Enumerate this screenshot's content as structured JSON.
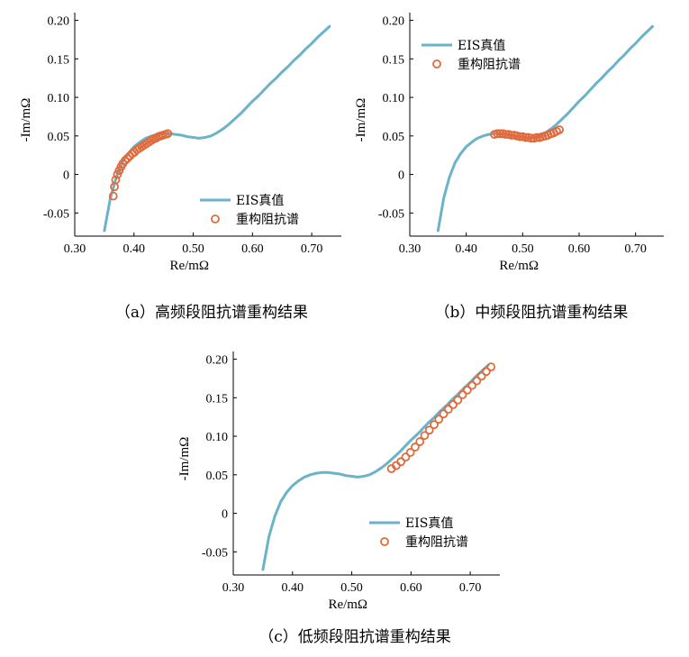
{
  "colors": {
    "truth": "#6ab3c9",
    "recon": "#e06a3b"
  },
  "chart_data": [
    {
      "id": "a",
      "type": "line",
      "caption": "（a）高频段阻抗谱重构结果",
      "xlabel": "Re/mΩ",
      "ylabel": "-Im/mΩ",
      "xlim": [
        0.3,
        0.75
      ],
      "ylim": [
        -0.08,
        0.21
      ],
      "xticks": [
        0.3,
        0.4,
        0.5,
        0.6,
        0.7
      ],
      "xtick_labels": [
        "0.30",
        "0.40",
        "0.50",
        "0.60",
        "0.70"
      ],
      "yticks": [
        -0.05,
        0,
        0.05,
        0.1,
        0.15,
        0.2
      ],
      "ytick_labels": [
        "-0.05",
        "0",
        "0.05",
        "0.10",
        "0.15",
        "0.20"
      ],
      "legend_position": "lower-right",
      "series": [
        {
          "name": "EIS真值",
          "kind": "line",
          "x": [
            0.35,
            0.36,
            0.37,
            0.38,
            0.39,
            0.4,
            0.41,
            0.42,
            0.43,
            0.44,
            0.45,
            0.46,
            0.47,
            0.48,
            0.49,
            0.5,
            0.51,
            0.52,
            0.53,
            0.54,
            0.55,
            0.56,
            0.57,
            0.58,
            0.59,
            0.6,
            0.61,
            0.62,
            0.63,
            0.64,
            0.65,
            0.66,
            0.67,
            0.68,
            0.69,
            0.7,
            0.71,
            0.72,
            0.73
          ],
          "y": [
            -0.073,
            -0.031,
            -0.004,
            0.015,
            0.027,
            0.036,
            0.042,
            0.047,
            0.05,
            0.052,
            0.053,
            0.053,
            0.052,
            0.051,
            0.049,
            0.048,
            0.047,
            0.048,
            0.05,
            0.054,
            0.059,
            0.065,
            0.072,
            0.079,
            0.087,
            0.095,
            0.102,
            0.11,
            0.118,
            0.125,
            0.133,
            0.14,
            0.148,
            0.155,
            0.163,
            0.17,
            0.178,
            0.185,
            0.192
          ]
        },
        {
          "name": "重构阻抗谱",
          "kind": "scatter",
          "x": [
            0.365,
            0.367,
            0.369,
            0.372,
            0.375,
            0.378,
            0.381,
            0.385,
            0.389,
            0.393,
            0.397,
            0.401,
            0.405,
            0.409,
            0.413,
            0.417,
            0.421,
            0.425,
            0.429,
            0.433,
            0.437,
            0.441,
            0.445,
            0.449,
            0.453,
            0.457
          ],
          "y": [
            -0.028,
            -0.016,
            -0.007,
            0.0,
            0.005,
            0.01,
            0.014,
            0.018,
            0.021,
            0.024,
            0.027,
            0.029,
            0.032,
            0.034,
            0.036,
            0.038,
            0.04,
            0.042,
            0.044,
            0.046,
            0.047,
            0.049,
            0.05,
            0.051,
            0.052,
            0.053
          ]
        }
      ]
    },
    {
      "id": "b",
      "type": "line",
      "caption": "（b）中频段阻抗谱重构结果",
      "xlabel": "Re/mΩ",
      "ylabel": "-Im/mΩ",
      "xlim": [
        0.3,
        0.75
      ],
      "ylim": [
        -0.08,
        0.21
      ],
      "xticks": [
        0.3,
        0.4,
        0.5,
        0.6,
        0.7
      ],
      "xtick_labels": [
        "0.30",
        "0.40",
        "0.50",
        "0.60",
        "0.70"
      ],
      "yticks": [
        -0.05,
        0,
        0.05,
        0.1,
        0.15,
        0.2
      ],
      "ytick_labels": [
        "-0.05",
        "0",
        "0.05",
        "0.10",
        "0.15",
        "0.20"
      ],
      "legend_position": "upper-left",
      "series": [
        {
          "name": "EIS真值",
          "kind": "line",
          "x": [
            0.35,
            0.36,
            0.37,
            0.38,
            0.39,
            0.4,
            0.41,
            0.42,
            0.43,
            0.44,
            0.45,
            0.46,
            0.47,
            0.48,
            0.49,
            0.5,
            0.51,
            0.52,
            0.53,
            0.54,
            0.55,
            0.56,
            0.57,
            0.58,
            0.59,
            0.6,
            0.61,
            0.62,
            0.63,
            0.64,
            0.65,
            0.66,
            0.67,
            0.68,
            0.69,
            0.7,
            0.71,
            0.72,
            0.73
          ],
          "y": [
            -0.073,
            -0.031,
            -0.004,
            0.015,
            0.027,
            0.036,
            0.042,
            0.047,
            0.05,
            0.052,
            0.053,
            0.053,
            0.052,
            0.051,
            0.049,
            0.048,
            0.047,
            0.048,
            0.05,
            0.054,
            0.059,
            0.065,
            0.072,
            0.079,
            0.087,
            0.095,
            0.102,
            0.11,
            0.118,
            0.125,
            0.133,
            0.14,
            0.148,
            0.155,
            0.163,
            0.17,
            0.178,
            0.185,
            0.192
          ]
        },
        {
          "name": "重构阻抗谱",
          "kind": "scatter",
          "x": [
            0.45,
            0.455,
            0.46,
            0.465,
            0.47,
            0.475,
            0.48,
            0.485,
            0.49,
            0.495,
            0.5,
            0.505,
            0.51,
            0.515,
            0.52,
            0.525,
            0.53,
            0.535,
            0.54,
            0.545,
            0.55,
            0.555,
            0.56,
            0.565
          ],
          "y": [
            0.052,
            0.053,
            0.053,
            0.053,
            0.052,
            0.052,
            0.051,
            0.051,
            0.05,
            0.049,
            0.049,
            0.048,
            0.048,
            0.047,
            0.047,
            0.048,
            0.048,
            0.049,
            0.05,
            0.051,
            0.053,
            0.054,
            0.056,
            0.058
          ]
        }
      ]
    },
    {
      "id": "c",
      "type": "line",
      "caption": "（c）低频段阻抗谱重构结果",
      "xlabel": "Re/mΩ",
      "ylabel": "-Im/mΩ",
      "xlim": [
        0.3,
        0.75
      ],
      "ylim": [
        -0.08,
        0.21
      ],
      "xticks": [
        0.3,
        0.4,
        0.5,
        0.6,
        0.7
      ],
      "xtick_labels": [
        "0.30",
        "0.40",
        "0.50",
        "0.60",
        "0.70"
      ],
      "yticks": [
        -0.05,
        0,
        0.05,
        0.1,
        0.15,
        0.2
      ],
      "ytick_labels": [
        "-0.05",
        "0",
        "0.05",
        "0.10",
        "0.15",
        "0.20"
      ],
      "legend_position": "lower-right",
      "series": [
        {
          "name": "EIS真值",
          "kind": "line",
          "x": [
            0.35,
            0.36,
            0.37,
            0.38,
            0.39,
            0.4,
            0.41,
            0.42,
            0.43,
            0.44,
            0.45,
            0.46,
            0.47,
            0.48,
            0.49,
            0.5,
            0.51,
            0.52,
            0.53,
            0.54,
            0.55,
            0.56,
            0.57,
            0.58,
            0.59,
            0.6,
            0.61,
            0.62,
            0.63,
            0.64,
            0.65,
            0.66,
            0.67,
            0.68,
            0.69,
            0.7,
            0.71,
            0.72,
            0.73
          ],
          "y": [
            -0.073,
            -0.031,
            -0.004,
            0.015,
            0.027,
            0.036,
            0.042,
            0.047,
            0.05,
            0.052,
            0.053,
            0.053,
            0.052,
            0.051,
            0.049,
            0.048,
            0.047,
            0.048,
            0.05,
            0.054,
            0.059,
            0.065,
            0.072,
            0.079,
            0.087,
            0.095,
            0.102,
            0.11,
            0.118,
            0.125,
            0.133,
            0.14,
            0.148,
            0.155,
            0.163,
            0.17,
            0.178,
            0.185,
            0.192
          ]
        },
        {
          "name": "重构阻抗谱",
          "kind": "scatter",
          "x": [
            0.567,
            0.575,
            0.583,
            0.591,
            0.599,
            0.607,
            0.615,
            0.623,
            0.631,
            0.639,
            0.647,
            0.655,
            0.663,
            0.671,
            0.679,
            0.687,
            0.695,
            0.703,
            0.711,
            0.719,
            0.727,
            0.735
          ],
          "y": [
            0.058,
            0.062,
            0.067,
            0.073,
            0.079,
            0.086,
            0.093,
            0.101,
            0.108,
            0.115,
            0.122,
            0.129,
            0.135,
            0.141,
            0.147,
            0.154,
            0.16,
            0.166,
            0.172,
            0.178,
            0.184,
            0.19
          ]
        }
      ]
    }
  ]
}
